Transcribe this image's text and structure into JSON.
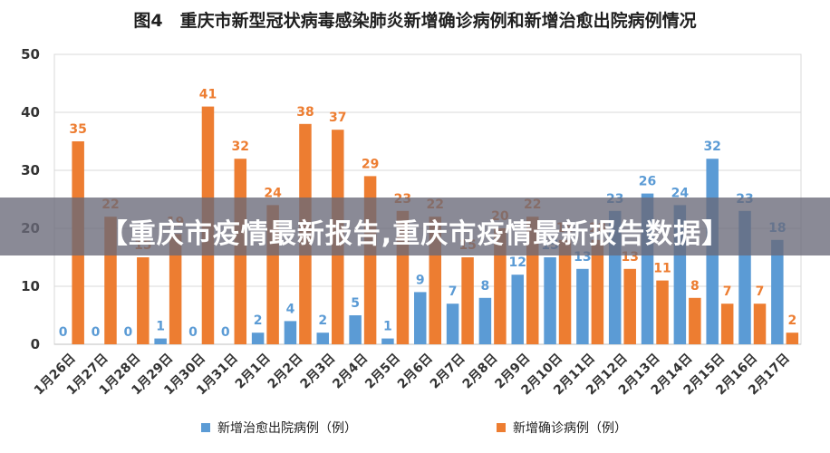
{
  "chart_data": {
    "type": "bar",
    "title": "图4　重庆市新型冠状病毒感染肺炎新增确诊病例和新增治愈出院病例情况",
    "categories": [
      "1月26日",
      "1月27日",
      "1月28日",
      "1月29日",
      "1月30日",
      "1月31日",
      "2月1日",
      "2月2日",
      "2月3日",
      "2月4日",
      "2月5日",
      "2月6日",
      "2月7日",
      "2月8日",
      "2月9日",
      "2月10日",
      "2月11日",
      "2月12日",
      "2月13日",
      "2月14日",
      "2月15日",
      "2月16日",
      "2月17日"
    ],
    "series": [
      {
        "name": "新增治愈出院病例（例）",
        "color": "#5b9bd5",
        "values": [
          0,
          0,
          0,
          1,
          0,
          0,
          2,
          4,
          2,
          5,
          1,
          9,
          7,
          8,
          12,
          15,
          13,
          23,
          26,
          24,
          32,
          23,
          18
        ]
      },
      {
        "name": "新增确诊病例（例）",
        "color": "#ed7d31",
        "values": [
          35,
          22,
          15,
          19,
          41,
          32,
          24,
          38,
          37,
          29,
          23,
          22,
          15,
          20,
          22,
          18,
          18,
          13,
          11,
          8,
          7,
          7,
          2
        ]
      }
    ],
    "ylim": [
      0,
      50
    ],
    "yticks": [
      0,
      10,
      20,
      30,
      40,
      50
    ],
    "grid": true,
    "legend_position": "bottom"
  },
  "overlay": {
    "banner_text": "【重庆市疫情最新报告,重庆市疫情最新报告数据】"
  }
}
